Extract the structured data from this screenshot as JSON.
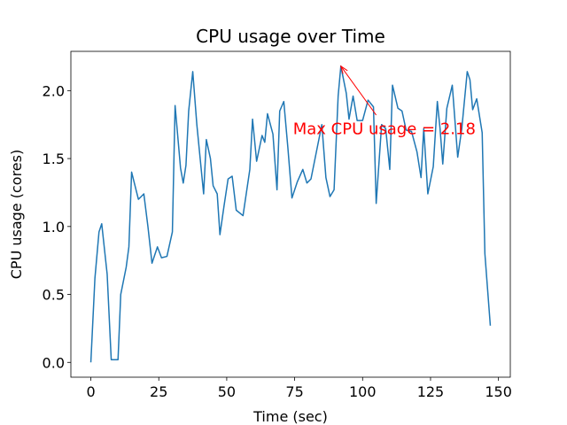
{
  "chart_data": {
    "type": "line",
    "title": "CPU usage over Time",
    "x_label": "Time (sec)",
    "y_label": "CPU usage (cores)",
    "x": [
      0,
      1.5,
      3,
      4,
      6,
      7.5,
      10,
      11,
      13,
      14,
      15,
      17.5,
      19.5,
      21,
      22.5,
      24.5,
      26,
      28,
      30,
      31,
      33,
      34,
      35,
      36,
      37.5,
      39,
      41.5,
      42.5,
      44,
      45,
      46.5,
      47.5,
      49,
      50.5,
      52,
      53.5,
      56,
      58.5,
      59.5,
      61,
      63,
      64,
      65,
      67,
      68.5,
      69.5,
      71,
      72.5,
      74,
      76,
      78,
      79.5,
      81,
      83.5,
      85,
      86.5,
      88,
      89.5,
      91,
      92,
      94,
      95,
      96.5,
      98,
      100,
      102,
      104,
      105,
      107,
      108.5,
      110,
      111,
      113,
      114.5,
      116,
      118,
      120,
      121.5,
      122.5,
      124,
      126,
      127.5,
      128.5,
      129.5,
      131,
      133,
      135,
      136.5,
      138.5,
      139.5,
      140.5,
      142,
      144,
      145,
      147
    ],
    "series": [
      {
        "name": "CPU usage",
        "color": "#1f77b4",
        "values": [
          0.0,
          0.62,
          0.96,
          1.02,
          0.65,
          0.02,
          0.02,
          0.5,
          0.7,
          0.85,
          1.4,
          1.2,
          1.24,
          1.0,
          0.73,
          0.85,
          0.77,
          0.78,
          0.96,
          1.89,
          1.43,
          1.32,
          1.45,
          1.85,
          2.14,
          1.75,
          1.24,
          1.64,
          1.5,
          1.3,
          1.24,
          0.94,
          1.15,
          1.35,
          1.37,
          1.12,
          1.08,
          1.42,
          1.79,
          1.48,
          1.67,
          1.62,
          1.83,
          1.68,
          1.27,
          1.85,
          1.92,
          1.58,
          1.21,
          1.33,
          1.42,
          1.32,
          1.35,
          1.6,
          1.75,
          1.36,
          1.22,
          1.27,
          1.96,
          2.18,
          1.98,
          1.79,
          1.96,
          1.78,
          1.78,
          1.93,
          1.88,
          1.17,
          1.75,
          1.72,
          1.42,
          2.04,
          1.87,
          1.85,
          1.71,
          1.7,
          1.55,
          1.36,
          1.72,
          1.24,
          1.44,
          1.92,
          1.72,
          1.46,
          1.87,
          2.04,
          1.51,
          1.72,
          2.14,
          2.08,
          1.86,
          1.94,
          1.69,
          0.8,
          0.27
        ]
      }
    ],
    "xlim": [
      -7.35,
      154.35
    ],
    "xticks": [
      0,
      25,
      50,
      75,
      100,
      125,
      150
    ],
    "ylim": [
      -0.109,
      2.289
    ],
    "yticks": [
      {
        "value": 0,
        "label": "0.0"
      },
      0.5,
      {
        "value": 1,
        "label": "1.0"
      },
      1.5,
      {
        "value": 2,
        "label": "2.0"
      }
    ],
    "annotation": {
      "text": "Max CPU usage = 2.18",
      "color": "#ff0000",
      "xy": [
        92,
        2.18
      ],
      "xytext": [
        108,
        1.72
      ]
    }
  }
}
